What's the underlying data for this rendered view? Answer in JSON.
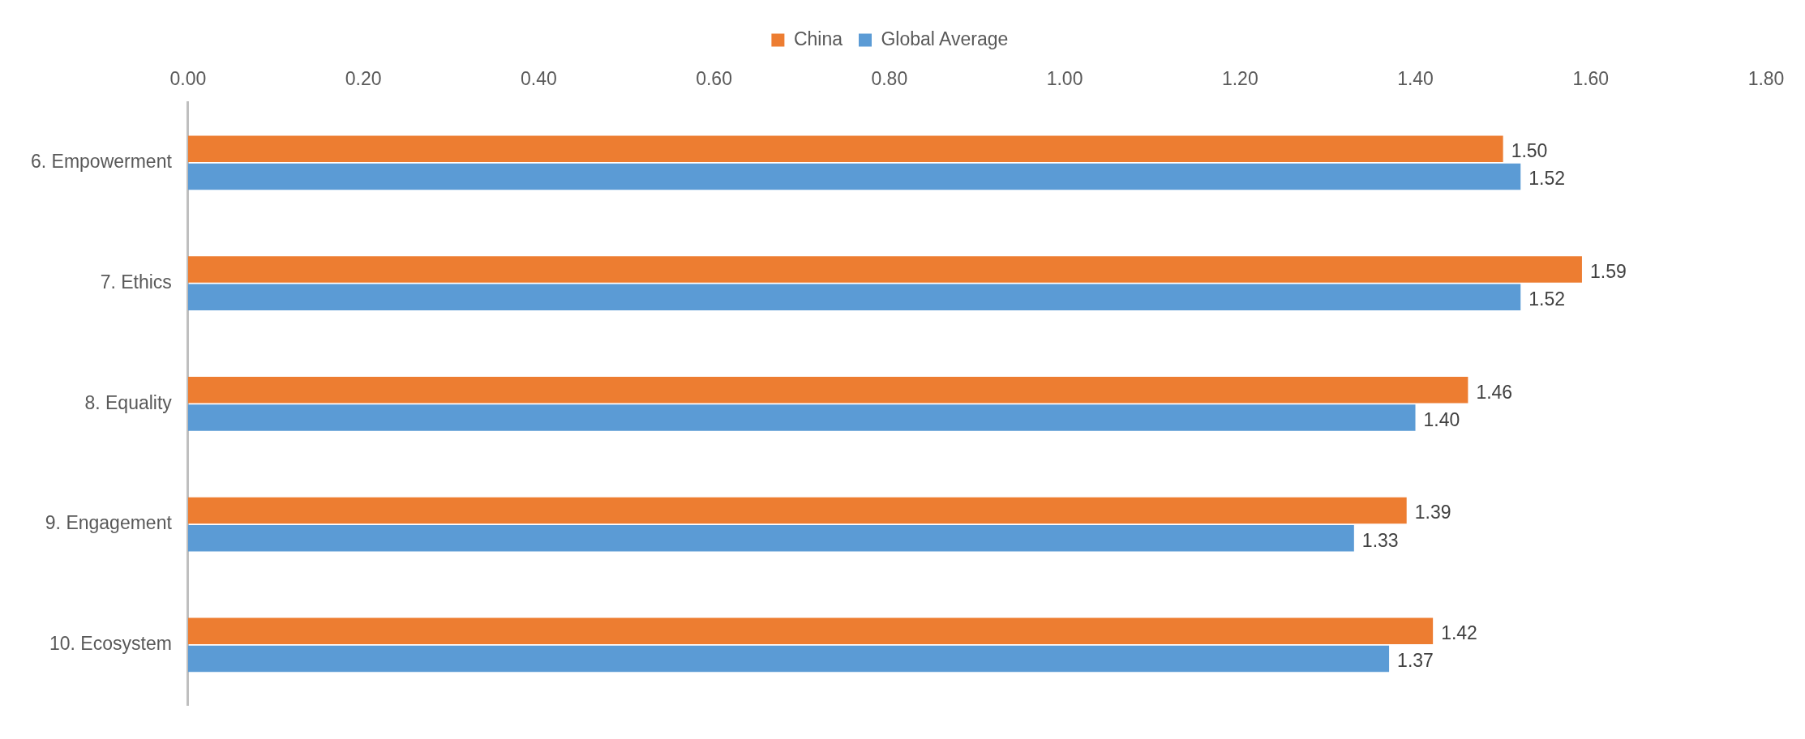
{
  "chart_data": {
    "type": "bar",
    "orientation": "horizontal",
    "categories": [
      "6. Empowerment",
      "7. Ethics",
      "8. Equality",
      "9. Engagement",
      "10. Ecosystem"
    ],
    "series": [
      {
        "name": "China",
        "color": "#ed7d31",
        "values": [
          1.5,
          1.59,
          1.46,
          1.39,
          1.42
        ],
        "value_labels": [
          "1.50",
          "1.59",
          "1.46",
          "1.39",
          "1.42"
        ]
      },
      {
        "name": "Global Average",
        "color": "#5b9bd5",
        "values": [
          1.52,
          1.52,
          1.4,
          1.33,
          1.37
        ],
        "value_labels": [
          "1.52",
          "1.52",
          "1.40",
          "1.33",
          "1.37"
        ]
      }
    ],
    "xlim": [
      0,
      1.8
    ],
    "xticks": [
      {
        "value": 0,
        "label": "0.00"
      },
      {
        "value": 0.2,
        "label": "0.20"
      },
      {
        "value": 0.4,
        "label": "0.40"
      },
      {
        "value": 0.6,
        "label": "0.60"
      },
      {
        "value": 0.8,
        "label": "0.80"
      },
      {
        "value": 1,
        "label": "1.00"
      },
      {
        "value": 1.2,
        "label": "1.20"
      },
      {
        "value": 1.4,
        "label": "1.40"
      },
      {
        "value": 1.6,
        "label": "1.60"
      },
      {
        "value": 1.8,
        "label": "1.80"
      }
    ],
    "grid": false,
    "legend": "top"
  }
}
